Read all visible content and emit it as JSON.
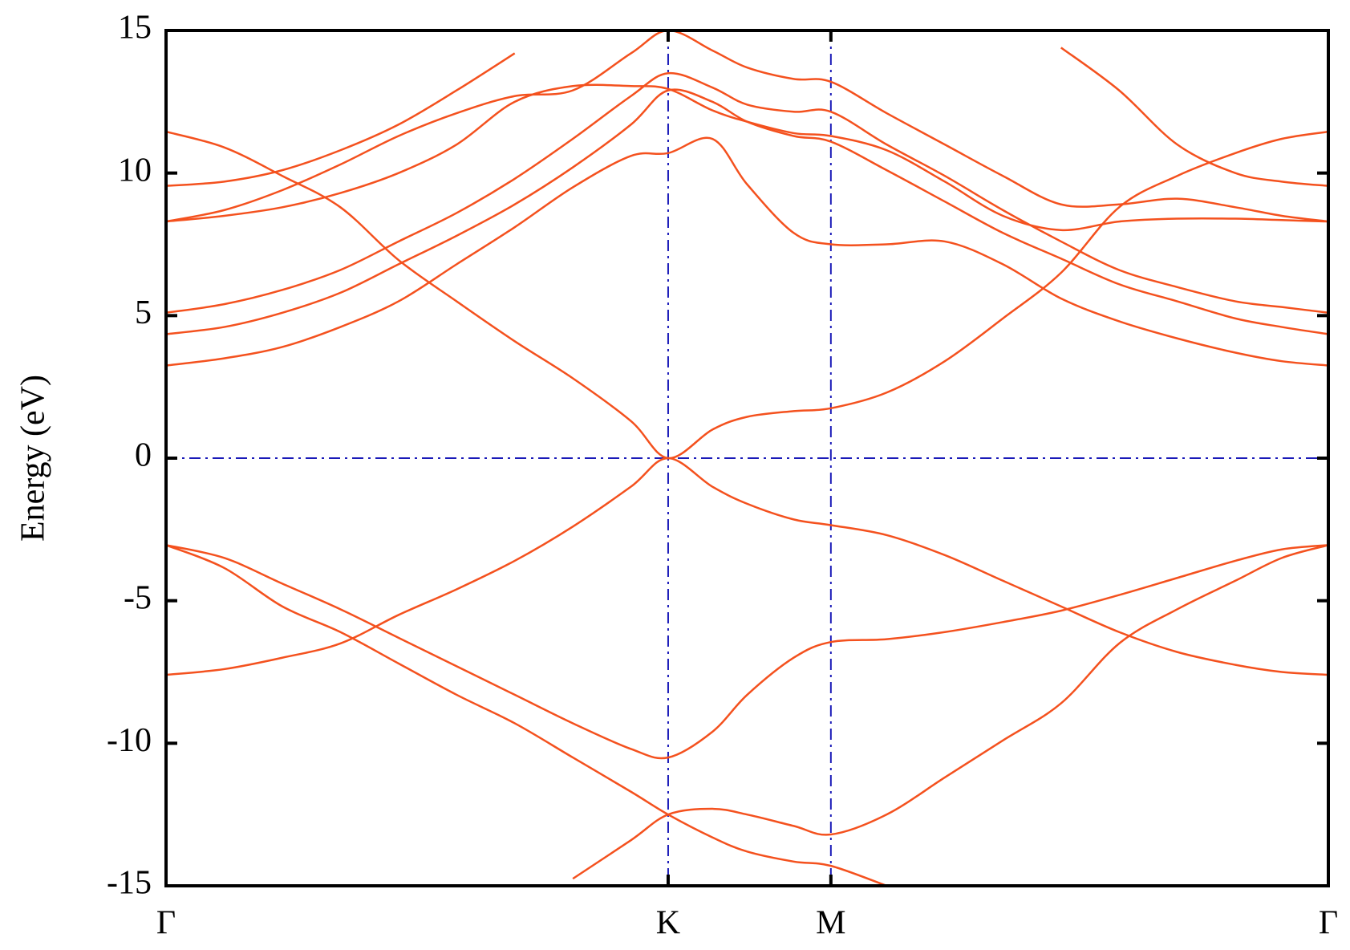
{
  "chart_data": {
    "type": "line",
    "ylabel": "Energy (eV)",
    "xlim": [
      0,
      1
    ],
    "ylim": [
      -15,
      15
    ],
    "xticks": [
      {
        "value": 0,
        "label": "Γ"
      },
      {
        "value": 0.432,
        "label": "K"
      },
      {
        "value": 0.572,
        "label": "M"
      },
      {
        "value": 1,
        "label": "Γ"
      }
    ],
    "yticks": [
      -15,
      -10,
      -5,
      0,
      5,
      10,
      15
    ],
    "x": [
      0,
      0.05,
      0.1,
      0.15,
      0.2,
      0.25,
      0.3,
      0.35,
      0.4,
      0.432,
      0.47,
      0.5,
      0.54,
      0.572,
      0.62,
      0.67,
      0.72,
      0.77,
      0.82,
      0.87,
      0.92,
      0.96,
      1
    ],
    "series": [
      {
        "color": "#f4511e",
        "values": [
          -3.05,
          -3.85,
          -5.2,
          -6.1,
          -7.2,
          -8.3,
          -9.3,
          -10.5,
          -11.7,
          -12.5,
          -13.3,
          -13.8,
          -14.15,
          -14.3,
          -15,
          null,
          null,
          null,
          null,
          null,
          null,
          null,
          null
        ]
      },
      {
        "color": "#f4511e",
        "values": [
          -3.05,
          -3.5,
          -4.4,
          -5.3,
          -6.3,
          -7.3,
          -8.3,
          -9.3,
          -10.2,
          -10.5,
          -9.6,
          -8.3,
          -7.0,
          -6.45,
          -6.35,
          -6.1,
          -5.75,
          -5.35,
          -4.8,
          -4.2,
          -3.6,
          -3.2,
          -3.05
        ]
      },
      {
        "color": "#f4511e",
        "values": [
          -7.6,
          -7.4,
          -7.0,
          -6.5,
          -5.5,
          -4.6,
          -3.6,
          -2.4,
          -1.0,
          0,
          -1.0,
          -1.6,
          -2.15,
          -2.35,
          -2.7,
          -3.4,
          -4.3,
          -5.2,
          -6.1,
          -6.8,
          -7.25,
          -7.5,
          -7.6
        ]
      },
      {
        "color": "#f4511e",
        "values": [
          null,
          null,
          null,
          null,
          null,
          null,
          null,
          -14.75,
          -13.4,
          -12.5,
          -12.3,
          -12.5,
          -12.9,
          -13.2,
          -12.5,
          -11.2,
          -9.9,
          -8.6,
          -6.5,
          -5.3,
          -4.3,
          -3.5,
          -3.05
        ]
      },
      {
        "color": "#f4511e",
        "values": [
          11.45,
          10.9,
          9.9,
          8.8,
          6.95,
          5.5,
          4.1,
          2.8,
          1.3,
          0,
          1.0,
          1.45,
          1.65,
          1.75,
          2.3,
          3.4,
          4.9,
          6.5,
          8.8,
          9.9,
          10.7,
          11.2,
          11.45
        ]
      },
      {
        "color": "#f4511e",
        "values": [
          3.25,
          3.5,
          3.9,
          4.6,
          5.5,
          6.8,
          8.1,
          9.5,
          10.6,
          10.7,
          11.2,
          9.6,
          7.9,
          7.5,
          7.5,
          7.6,
          6.8,
          5.6,
          4.8,
          4.2,
          3.7,
          3.4,
          3.25
        ]
      },
      {
        "color": "#f4511e",
        "values": [
          4.35,
          4.6,
          5.1,
          5.8,
          6.8,
          7.8,
          8.9,
          10.2,
          11.7,
          12.9,
          12.5,
          11.8,
          11.3,
          11.1,
          10.1,
          9.0,
          7.9,
          7.0,
          6.1,
          5.5,
          4.9,
          4.6,
          4.35
        ]
      },
      {
        "color": "#f4511e",
        "values": [
          5.1,
          5.4,
          5.9,
          6.6,
          7.6,
          8.6,
          9.8,
          11.2,
          12.7,
          13.5,
          13.0,
          12.4,
          12.15,
          12.15,
          11.0,
          9.9,
          8.7,
          7.6,
          6.6,
          6.0,
          5.5,
          5.3,
          5.1
        ]
      },
      {
        "color": "#f4511e",
        "values": [
          8.3,
          8.5,
          8.8,
          9.3,
          10.0,
          11.0,
          12.5,
          13.05,
          13.05,
          12.95,
          12.2,
          11.8,
          11.4,
          11.3,
          10.8,
          9.7,
          8.5,
          8.0,
          8.3,
          8.4,
          8.4,
          8.35,
          8.3
        ]
      },
      {
        "color": "#f4511e",
        "values": [
          8.3,
          8.7,
          9.4,
          10.3,
          11.3,
          12.1,
          12.7,
          12.9,
          14.2,
          15,
          14.3,
          13.7,
          13.3,
          13.2,
          12.1,
          11.0,
          9.9,
          8.9,
          8.9,
          9.1,
          8.8,
          8.5,
          8.3
        ]
      },
      {
        "color": "#f4511e",
        "values": [
          9.55,
          9.7,
          10.1,
          10.8,
          11.7,
          12.9,
          14.2,
          null,
          null,
          null,
          null,
          null,
          null,
          null,
          null,
          null,
          null,
          14.4,
          12.9,
          11.0,
          10.0,
          9.7,
          9.55
        ]
      }
    ]
  }
}
